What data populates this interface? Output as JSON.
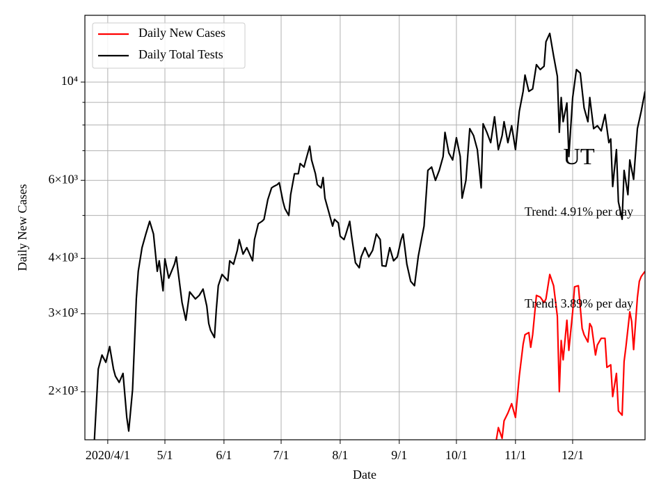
{
  "chart_data": {
    "type": "line",
    "xlabel": "Date",
    "ylabel": "Daily New Cases",
    "xlim": [
      -12,
      282
    ],
    "ylim": [
      1558,
      14150
    ],
    "yscale": "log",
    "grid": true,
    "legend": "upper left",
    "xticks": [
      {
        "value": 0,
        "label": "2020/4/1"
      },
      {
        "value": 30,
        "label": "5/1"
      },
      {
        "value": 61,
        "label": "6/1"
      },
      {
        "value": 91,
        "label": "7/1"
      },
      {
        "value": 122,
        "label": "8/1"
      },
      {
        "value": 153,
        "label": "9/1"
      },
      {
        "value": 183,
        "label": "10/1"
      },
      {
        "value": 214,
        "label": "11/1"
      },
      {
        "value": 244,
        "label": "12/1"
      }
    ],
    "yticks": [
      {
        "value": 2000,
        "label": "2×10³"
      },
      {
        "value": 3000,
        "label": "3×10³"
      },
      {
        "value": 4000,
        "label": "4×10³"
      },
      {
        "value": 6000,
        "label": "6×10³"
      },
      {
        "value": 10000,
        "label": "10⁴"
      }
    ],
    "yminor": [
      5000,
      7000,
      8000,
      9000
    ],
    "annotations": [
      {
        "text": "UT",
        "size": "large"
      },
      {
        "text": "Trend: 4.91% per day"
      },
      {
        "text": "Trend: 3.89% per day"
      }
    ],
    "series": [
      {
        "name": "Daily New Cases",
        "color": "#ff0000",
        "x": [
          204,
          205,
          207,
          208,
          210,
          212,
          214,
          216,
          218,
          219,
          221,
          222,
          223,
          225,
          227,
          229,
          230,
          232,
          234,
          236,
          237,
          238,
          239,
          241,
          242,
          244,
          245,
          247,
          249,
          250,
          252,
          253,
          254,
          256,
          257,
          259,
          261,
          262,
          264,
          265,
          267,
          268,
          270,
          271,
          272,
          274,
          275,
          276,
          278,
          279,
          280,
          282
        ],
        "values": [
          1560,
          1660,
          1570,
          1720,
          1790,
          1880,
          1750,
          2170,
          2560,
          2690,
          2720,
          2520,
          2690,
          3300,
          3270,
          3180,
          3240,
          3680,
          3470,
          2960,
          2000,
          2610,
          2360,
          2900,
          2480,
          3030,
          3450,
          3470,
          2780,
          2690,
          2590,
          2850,
          2800,
          2420,
          2550,
          2640,
          2640,
          2270,
          2300,
          1950,
          2200,
          1810,
          1770,
          2340,
          2530,
          3030,
          2880,
          2490,
          3260,
          3550,
          3640,
          3740
        ]
      },
      {
        "name": "Daily Total Tests",
        "color": "#000000",
        "x": [
          -7,
          -5,
          -3,
          -1,
          1,
          3,
          4,
          6,
          8,
          10,
          11,
          13,
          15,
          16,
          18,
          20,
          22,
          24,
          26,
          27,
          29,
          30,
          32,
          35,
          36,
          37,
          39,
          41,
          43,
          46,
          48,
          50,
          52,
          53,
          54,
          56,
          57,
          58,
          60,
          63,
          64,
          66,
          68,
          69,
          71,
          73,
          76,
          77,
          79,
          81,
          82,
          84,
          86,
          87,
          89,
          90,
          92,
          93,
          95,
          96,
          98,
          100,
          101,
          103,
          104,
          106,
          107,
          109,
          110,
          112,
          113,
          114,
          116,
          118,
          119,
          121,
          122,
          124,
          125,
          127,
          128,
          130,
          132,
          133,
          135,
          137,
          139,
          141,
          143,
          144,
          146,
          148,
          150,
          152,
          154,
          155,
          157,
          159,
          161,
          163,
          165,
          166,
          168,
          170,
          172,
          174,
          176,
          177,
          179,
          181,
          183,
          185,
          186,
          188,
          190,
          192,
          194,
          196,
          197,
          199,
          201,
          203,
          205,
          207,
          208,
          210,
          212,
          214,
          216,
          218,
          219,
          221,
          223,
          225,
          227,
          229,
          230,
          232,
          234,
          236,
          237,
          238,
          239,
          241,
          242,
          244,
          246,
          248,
          250,
          252,
          253,
          255,
          257,
          259,
          261,
          263,
          264,
          265,
          267,
          268,
          270,
          271,
          273,
          274,
          276,
          278,
          280,
          282
        ],
        "values": [
          1560,
          2250,
          2420,
          2330,
          2530,
          2250,
          2170,
          2100,
          2200,
          1750,
          1630,
          2020,
          3240,
          3740,
          4230,
          4540,
          4850,
          4540,
          3740,
          3950,
          3380,
          3990,
          3610,
          3880,
          4030,
          3710,
          3180,
          2900,
          3360,
          3240,
          3300,
          3410,
          3120,
          2850,
          2750,
          2650,
          3070,
          3470,
          3680,
          3560,
          3950,
          3880,
          4170,
          4410,
          4090,
          4230,
          3950,
          4410,
          4790,
          4850,
          4900,
          5430,
          5770,
          5810,
          5870,
          5930,
          5370,
          5180,
          5000,
          5570,
          6210,
          6210,
          6550,
          6430,
          6670,
          7170,
          6670,
          6210,
          5870,
          5770,
          6090,
          5470,
          5090,
          4730,
          4900,
          4810,
          4490,
          4410,
          4540,
          4850,
          4490,
          3910,
          3810,
          4030,
          4230,
          4030,
          4170,
          4540,
          4410,
          3850,
          3840,
          4230,
          3950,
          4030,
          4410,
          4540,
          3880,
          3550,
          3470,
          4050,
          4490,
          4730,
          6320,
          6430,
          6000,
          6320,
          6790,
          7700,
          6920,
          6670,
          7490,
          6790,
          5470,
          6000,
          7850,
          7570,
          7040,
          5770,
          8050,
          7700,
          7300,
          8350,
          7040,
          7570,
          8140,
          7300,
          7970,
          7040,
          8590,
          9530,
          10370,
          9530,
          9650,
          10950,
          10670,
          10860,
          12330,
          12880,
          11460,
          10300,
          7700,
          9230,
          8140,
          8970,
          6790,
          9230,
          10670,
          10480,
          8750,
          8140,
          9230,
          7850,
          7970,
          7760,
          8450,
          7300,
          7440,
          5810,
          7040,
          5370,
          4900,
          6320,
          5570,
          6670,
          6030,
          7850,
          8590,
          9530
        ]
      }
    ]
  }
}
